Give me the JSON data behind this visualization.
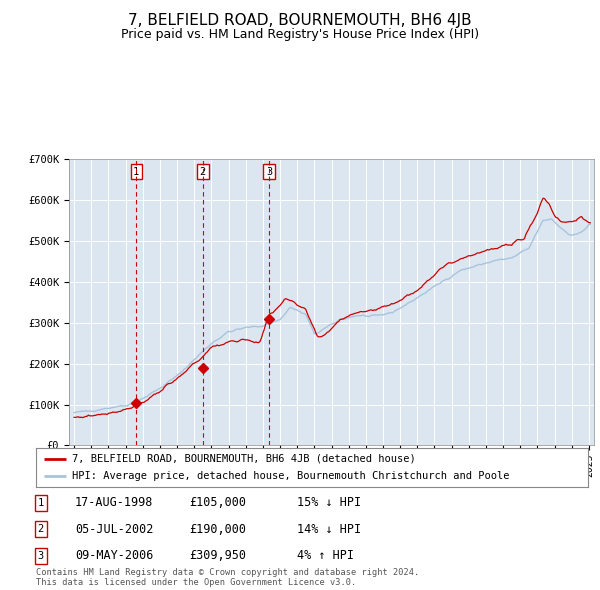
{
  "title": "7, BELFIELD ROAD, BOURNEMOUTH, BH6 4JB",
  "subtitle": "Price paid vs. HM Land Registry's House Price Index (HPI)",
  "title_fontsize": 11,
  "subtitle_fontsize": 9,
  "background_color": "#ffffff",
  "plot_bg_color": "#dce6f0",
  "grid_color": "#ffffff",
  "ylim": [
    0,
    700000
  ],
  "yticks": [
    0,
    100000,
    200000,
    300000,
    400000,
    500000,
    600000,
    700000
  ],
  "ytick_labels": [
    "£0",
    "£100K",
    "£200K",
    "£300K",
    "£400K",
    "£500K",
    "£600K",
    "£700K"
  ],
  "sale_prices": [
    105000,
    190000,
    309950
  ],
  "sale_numbers": [
    1,
    2,
    3
  ],
  "sale_color": "#cc0000",
  "hpi_color": "#a8c4dc",
  "vline_color": "#cc0000",
  "legend_sale_label": "7, BELFIELD ROAD, BOURNEMOUTH, BH6 4JB (detached house)",
  "legend_hpi_label": "HPI: Average price, detached house, Bournemouth Christchurch and Poole",
  "table_rows": [
    {
      "num": 1,
      "date": "17-AUG-1998",
      "price": "£105,000",
      "hpi": "15% ↓ HPI"
    },
    {
      "num": 2,
      "date": "05-JUL-2002",
      "price": "£190,000",
      "hpi": "14% ↓ HPI"
    },
    {
      "num": 3,
      "date": "09-MAY-2006",
      "price": "£309,950",
      "hpi": "4% ↑ HPI"
    }
  ],
  "footer": "Contains HM Land Registry data © Crown copyright and database right 2024.\nThis data is licensed under the Open Government Licence v3.0.",
  "x_start_year": 1995,
  "x_end_year": 2025,
  "sale_date_decimals": [
    1998.625,
    2002.5,
    2006.36
  ]
}
